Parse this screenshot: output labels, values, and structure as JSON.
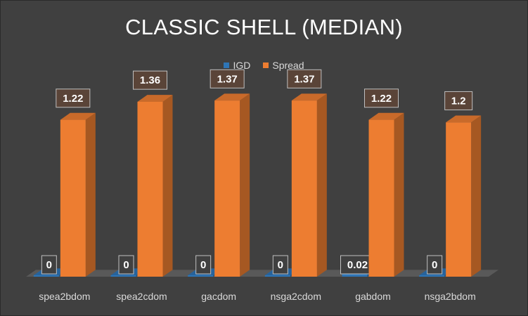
{
  "chart_data": {
    "type": "bar",
    "title": "CLASSIC SHELL (MEDIAN)",
    "xlabel": "",
    "ylabel": "",
    "categories": [
      "spea2bdom",
      "spea2cdom",
      "gacdom",
      "nsga2cdom",
      "gabdom",
      "nsga2bdom"
    ],
    "series": [
      {
        "name": "IGD",
        "values": [
          0,
          0,
          0,
          0,
          0.02,
          0
        ],
        "labels": [
          "0",
          "0",
          "0",
          "0",
          "0.02",
          "0"
        ],
        "color": "#2e75b6"
      },
      {
        "name": "Spread",
        "values": [
          1.22,
          1.36,
          1.37,
          1.37,
          1.22,
          1.2
        ],
        "labels": [
          "1.22",
          "1.36",
          "1.37",
          "1.37",
          "1.22",
          "1.2"
        ],
        "color": "#ed7d31"
      }
    ],
    "ylim": [
      0,
      1.6
    ],
    "grid": false,
    "legend_position": "top",
    "style": "3d-column"
  }
}
